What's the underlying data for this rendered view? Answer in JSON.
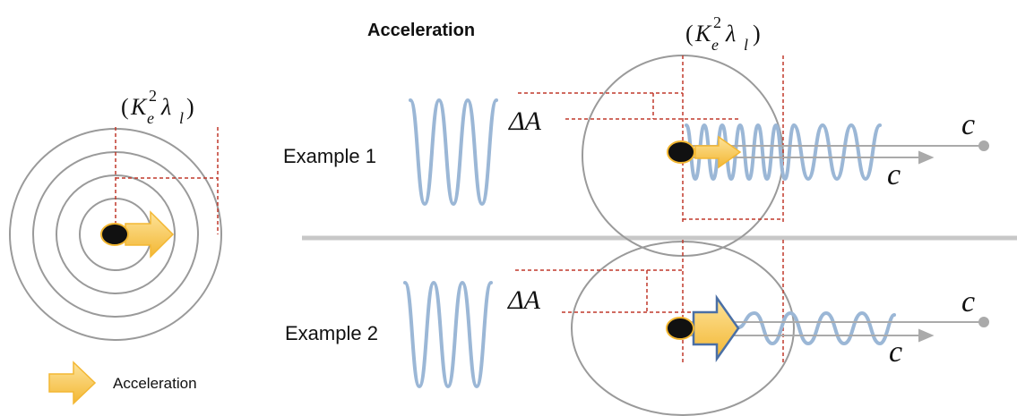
{
  "title": "Acceleration",
  "left_formula": {
    "open": "(",
    "K": "K",
    "sup": "2",
    "sub_e": "e",
    "lambda": "λ",
    "sub_l": "l",
    "close": ")"
  },
  "top_formula": {
    "open": "(",
    "K": "K",
    "sup": "2",
    "sub_e": "e",
    "lambda": "λ",
    "sub_l": "l",
    "close": ")"
  },
  "examples": [
    {
      "label": "Example 1",
      "delta": "ΔA",
      "c_upper": "c",
      "c_lower": "c"
    },
    {
      "label": "Example 2",
      "delta": "ΔA",
      "c_upper": "c",
      "c_lower": "c"
    }
  ],
  "legend": {
    "label": "Acceleration",
    "icon": "acceleration-arrow-icon"
  },
  "colors": {
    "wave": "#9bb7d6",
    "dashed": "#c0392b",
    "circle": "#9a9a9a",
    "arrow_fill": "#f6c653",
    "arrow_stroke_ex2": "#4a6fa5",
    "particle": "#111111",
    "particle_ring": "#f2b630",
    "divider": "#c8c8c8"
  }
}
